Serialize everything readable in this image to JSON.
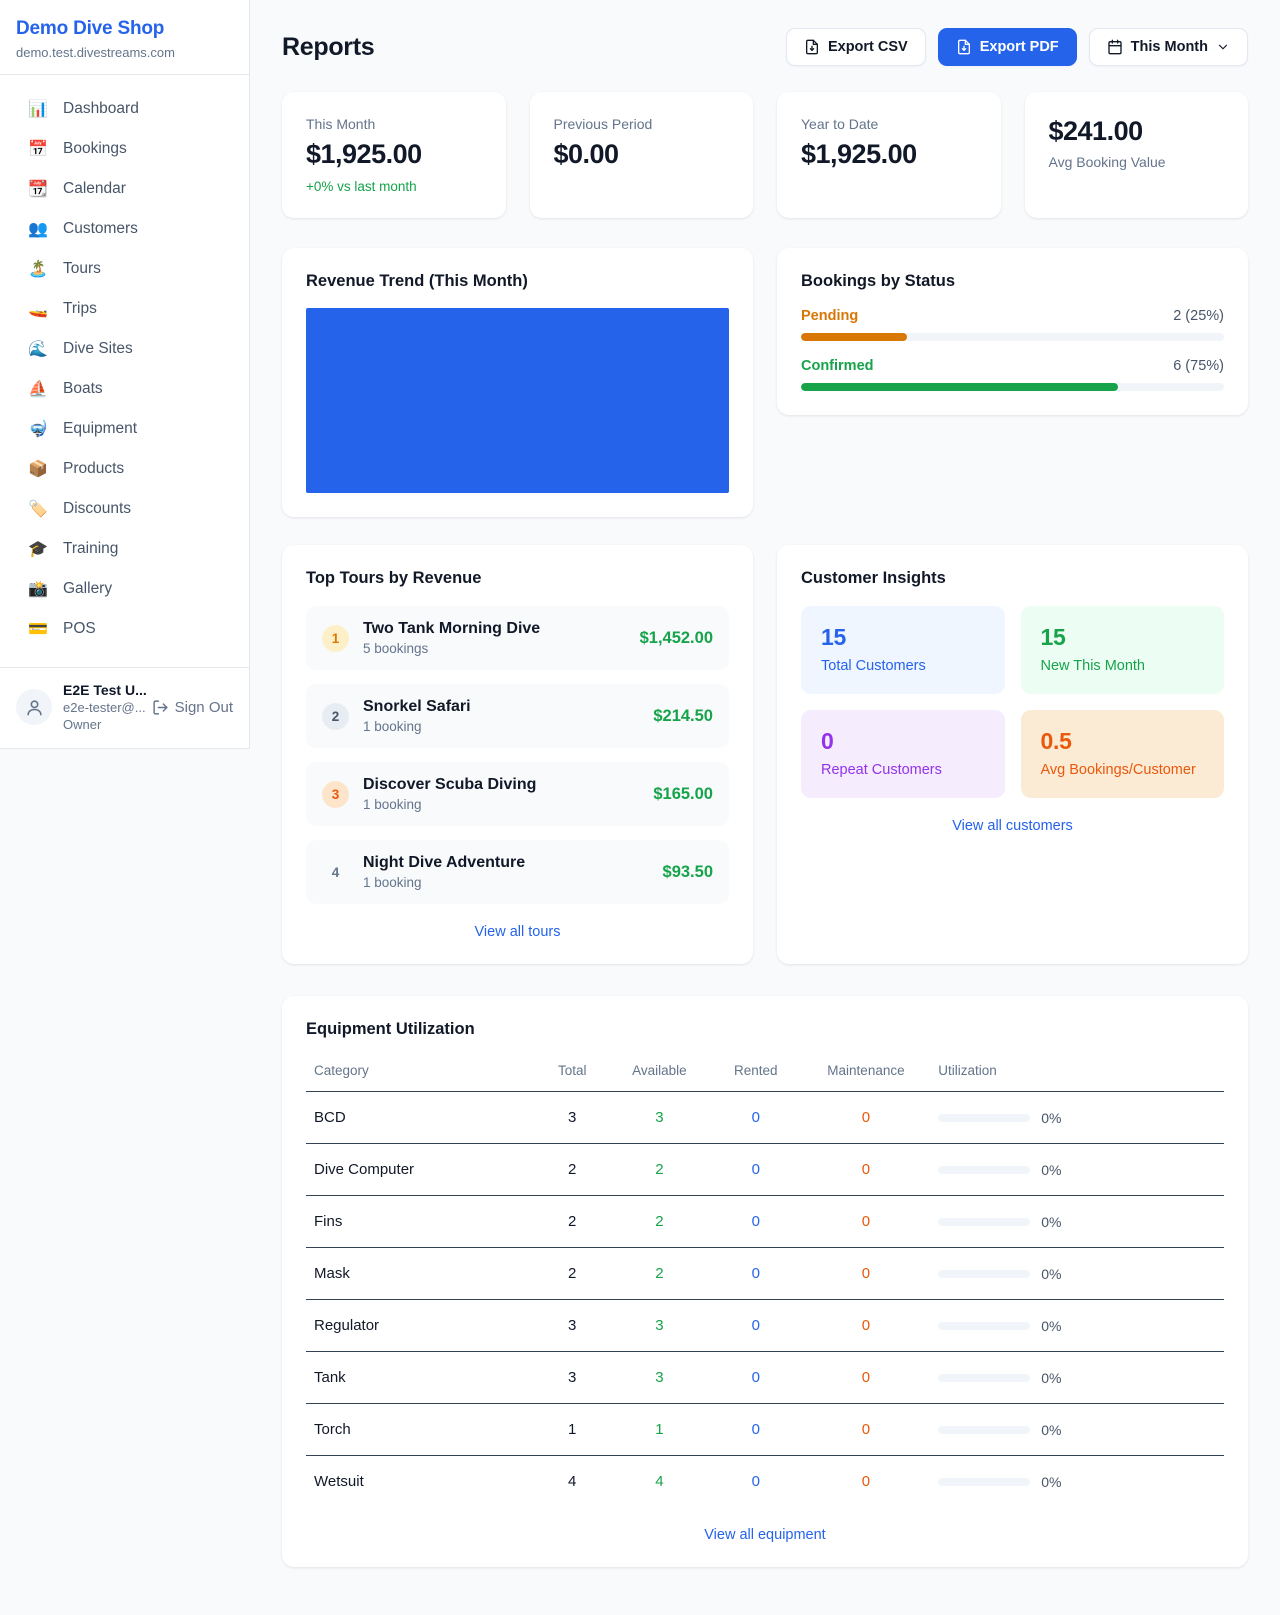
{
  "colors": {
    "brand": "#2563eb",
    "positive_green": "#16a34a",
    "pending_orange": "#d97706",
    "maintenance_orange": "#ea580c",
    "revenue_fill": "#2563eb"
  },
  "sidebar": {
    "shop_name": "Demo Dive Shop",
    "shop_domain": "demo.test.divestreams.com",
    "items": [
      {
        "icon": "📊",
        "label": "Dashboard"
      },
      {
        "icon": "📅",
        "label": "Bookings"
      },
      {
        "icon": "📆",
        "label": "Calendar"
      },
      {
        "icon": "👥",
        "label": "Customers"
      },
      {
        "icon": "🏝️",
        "label": "Tours"
      },
      {
        "icon": "🚤",
        "label": "Trips"
      },
      {
        "icon": "🌊",
        "label": "Dive Sites"
      },
      {
        "icon": "⛵",
        "label": "Boats"
      },
      {
        "icon": "🤿",
        "label": "Equipment"
      },
      {
        "icon": "📦",
        "label": "Products"
      },
      {
        "icon": "🏷️",
        "label": "Discounts"
      },
      {
        "icon": "🎓",
        "label": "Training"
      },
      {
        "icon": "📸",
        "label": "Gallery"
      },
      {
        "icon": "💳",
        "label": "POS"
      }
    ],
    "user": {
      "name": "E2E Test U...",
      "email": "e2e-tester@...",
      "role": "Owner",
      "sign_out_label": "Sign Out"
    }
  },
  "header": {
    "title": "Reports",
    "export_csv_label": "Export CSV",
    "export_pdf_label": "Export PDF",
    "period_label": "This Month"
  },
  "stats": [
    {
      "label": "This Month",
      "value": "$1,925.00",
      "delta": "+0% vs last month"
    },
    {
      "label": "Previous Period",
      "value": "$0.00"
    },
    {
      "label": "Year to Date",
      "value": "$1,925.00"
    },
    {
      "label": "Avg Booking Value",
      "value": "$241.00"
    }
  ],
  "revenue_trend": {
    "title": "Revenue Trend (This Month)"
  },
  "bookings_by_status": {
    "title": "Bookings by Status",
    "rows": [
      {
        "label": "Pending",
        "count_text": "2 (25%)",
        "count": 2,
        "pct": 25
      },
      {
        "label": "Confirmed",
        "count_text": "6 (75%)",
        "count": 6,
        "pct": 75
      }
    ]
  },
  "chart_data": [
    {
      "type": "area",
      "title": "Revenue Trend (This Month)",
      "series": [
        {
          "name": "Revenue",
          "values": [
            1925
          ]
        }
      ],
      "note_visible": "solid blue filled plot area, no axis ticks or labels visible",
      "color": "#2563eb"
    },
    {
      "type": "bar",
      "title": "Bookings by Status",
      "categories": [
        "Pending",
        "Confirmed"
      ],
      "values": [
        2,
        6
      ],
      "percentages": [
        25,
        75
      ],
      "colors": [
        "#d97706",
        "#16a34a"
      ],
      "xlim": [
        0,
        100
      ]
    }
  ],
  "top_tours": {
    "title": "Top Tours by Revenue",
    "view_all_label": "View all tours",
    "items": [
      {
        "rank": "1",
        "name": "Two Tank Morning Dive",
        "bookings": "5 bookings",
        "revenue": "$1,452.00"
      },
      {
        "rank": "2",
        "name": "Snorkel Safari",
        "bookings": "1 booking",
        "revenue": "$214.50"
      },
      {
        "rank": "3",
        "name": "Discover Scuba Diving",
        "bookings": "1 booking",
        "revenue": "$165.00"
      },
      {
        "rank": "4",
        "name": "Night Dive Adventure",
        "bookings": "1 booking",
        "revenue": "$93.50"
      }
    ]
  },
  "customer_insights": {
    "title": "Customer Insights",
    "view_all_label": "View all customers",
    "tiles": [
      {
        "value": "15",
        "label": "Total Customers",
        "theme": "blue"
      },
      {
        "value": "15",
        "label": "New This Month",
        "theme": "green"
      },
      {
        "value": "0",
        "label": "Repeat Customers",
        "theme": "purple"
      },
      {
        "value": "0.5",
        "label": "Avg Bookings/Customer",
        "theme": "orange"
      }
    ]
  },
  "equipment": {
    "title": "Equipment Utilization",
    "view_all_label": "View all equipment",
    "columns": [
      "Category",
      "Total",
      "Available",
      "Rented",
      "Maintenance",
      "Utilization"
    ],
    "rows": [
      {
        "category": "BCD",
        "total": "3",
        "available": "3",
        "rented": "0",
        "maintenance": "0",
        "utilization": "0%",
        "pct": 0
      },
      {
        "category": "Dive Computer",
        "total": "2",
        "available": "2",
        "rented": "0",
        "maintenance": "0",
        "utilization": "0%",
        "pct": 0
      },
      {
        "category": "Fins",
        "total": "2",
        "available": "2",
        "rented": "0",
        "maintenance": "0",
        "utilization": "0%",
        "pct": 0
      },
      {
        "category": "Mask",
        "total": "2",
        "available": "2",
        "rented": "0",
        "maintenance": "0",
        "utilization": "0%",
        "pct": 0
      },
      {
        "category": "Regulator",
        "total": "3",
        "available": "3",
        "rented": "0",
        "maintenance": "0",
        "utilization": "0%",
        "pct": 0
      },
      {
        "category": "Tank",
        "total": "3",
        "available": "3",
        "rented": "0",
        "maintenance": "0",
        "utilization": "0%",
        "pct": 0
      },
      {
        "category": "Torch",
        "total": "1",
        "available": "1",
        "rented": "0",
        "maintenance": "0",
        "utilization": "0%",
        "pct": 0
      },
      {
        "category": "Wetsuit",
        "total": "4",
        "available": "4",
        "rented": "0",
        "maintenance": "0",
        "utilization": "0%",
        "pct": 0
      }
    ]
  }
}
